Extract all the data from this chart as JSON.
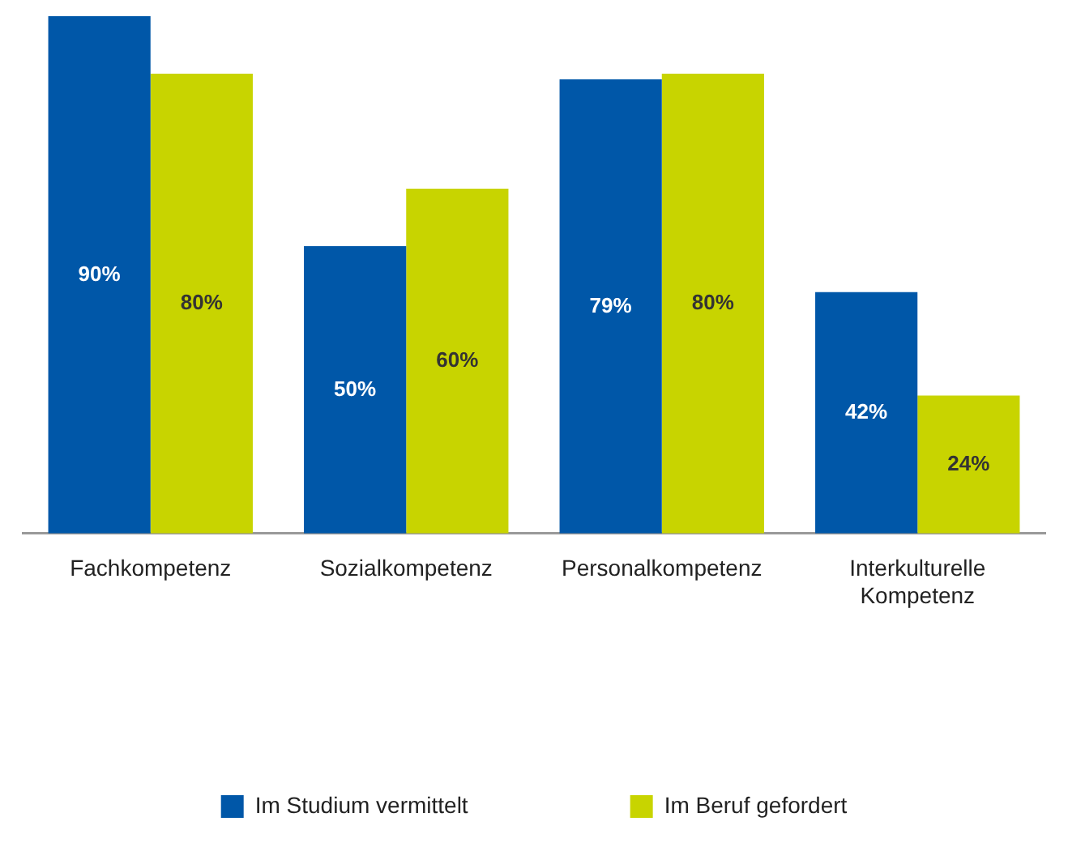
{
  "chart_data": {
    "type": "bar",
    "categories": [
      "Fachkompetenz",
      "Sozialkompetenz",
      "Personalkompetenz",
      "Interkulturelle Kompetenz"
    ],
    "series": [
      {
        "name": "Im Studium vermittelt",
        "color": "#0057a8",
        "values": [
          90,
          50,
          79,
          42
        ],
        "value_labels": [
          "90%",
          "50%",
          "79%",
          "42%"
        ]
      },
      {
        "name": "Im Beruf gefordert",
        "color": "#c8d400",
        "values": [
          80,
          60,
          80,
          24
        ],
        "value_labels": [
          "80%",
          "60%",
          "80%",
          "24%"
        ]
      }
    ],
    "legend": "bottom"
  }
}
